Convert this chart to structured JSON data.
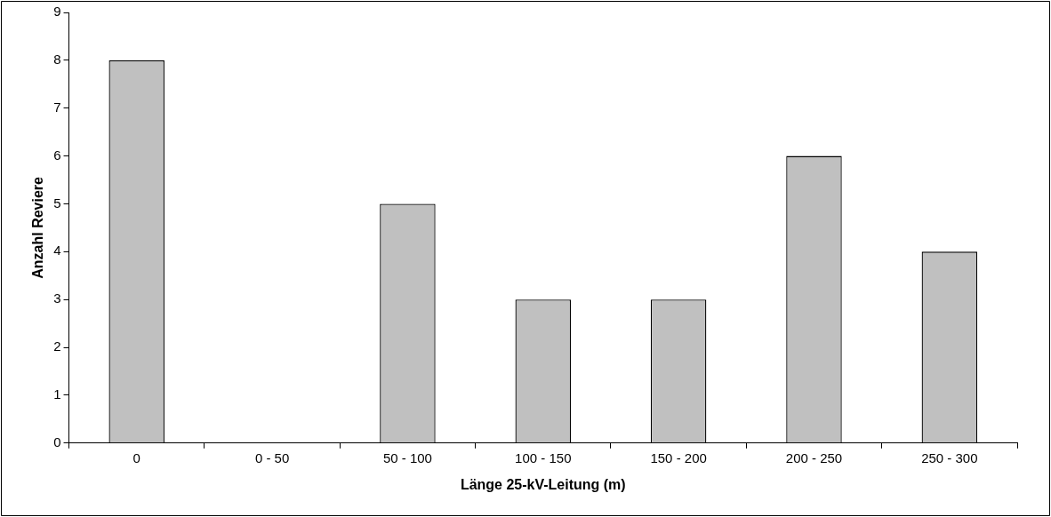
{
  "chart_data": {
    "type": "bar",
    "xlabel": "Länge 25-kV-Leitung (m)",
    "ylabel": "Anzahl Reviere",
    "categories": [
      "0",
      "0 - 50",
      "50 - 100",
      "100 - 150",
      "150 - 200",
      "200 - 250",
      "250 - 300"
    ],
    "values": [
      8,
      0,
      5,
      3,
      3,
      6,
      4
    ],
    "color": "#c0c0c0",
    "ylim": [
      0,
      9
    ],
    "yticks": [
      0,
      1,
      2,
      3,
      4,
      5,
      6,
      7,
      8,
      9
    ],
    "grid": false,
    "legend": false
  }
}
